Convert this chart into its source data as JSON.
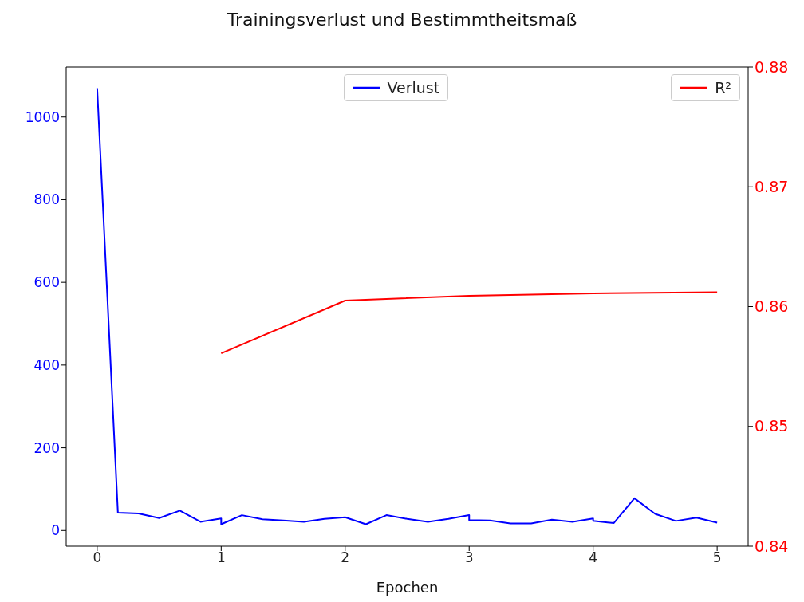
{
  "chart_data": {
    "type": "line",
    "title": "Trainingsverlust und Bestimmtheitsmaß",
    "xlabel": "Epochen",
    "xlim": [
      -0.25,
      5.25
    ],
    "xticks": [
      0,
      1,
      2,
      3,
      4,
      5
    ],
    "ylim": [
      -38,
      1121
    ],
    "yticks": [
      0,
      200,
      400,
      600,
      800,
      1000
    ],
    "y2lim": [
      0.84,
      0.88
    ],
    "y2ticks": [
      0.84,
      0.85,
      0.86,
      0.87,
      0.88
    ],
    "legend": "top",
    "marker": "none",
    "line_style": "solid",
    "series": [
      {
        "name": "Verlust",
        "color": "#0000ff",
        "x": [
          0,
          0.167,
          0.333,
          0.5,
          0.667,
          0.833,
          1,
          1,
          1.167,
          1.333,
          1.5,
          1.667,
          1.833,
          2,
          2.167,
          2.333,
          2.5,
          2.667,
          2.833,
          3,
          3,
          3.167,
          3.333,
          3.5,
          3.667,
          3.833,
          4,
          4,
          4.167,
          4.333,
          4.5,
          4.667,
          4.833,
          5
        ],
        "values": [
          1070,
          43,
          41,
          30,
          48,
          21,
          29,
          15,
          37,
          27,
          24,
          21,
          28,
          32,
          15,
          37,
          28,
          21,
          28,
          37,
          25,
          24,
          17,
          17,
          26,
          21,
          29,
          23,
          18,
          78,
          40,
          23,
          31,
          19
        ]
      },
      {
        "name": "R²",
        "color": "#ff0000",
        "axis": "y2",
        "x": [
          1,
          2,
          3,
          4,
          5
        ],
        "values": [
          0.8561,
          0.8605,
          0.8609,
          0.8611,
          0.8612
        ]
      }
    ]
  }
}
